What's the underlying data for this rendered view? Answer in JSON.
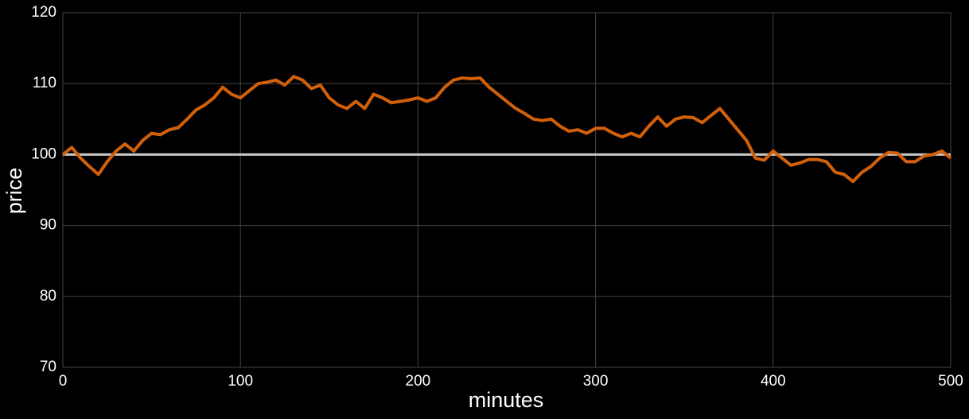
{
  "chart_data": {
    "type": "line",
    "xlabel": "minutes",
    "ylabel": "price",
    "x": [
      0,
      5,
      10,
      15,
      20,
      25,
      30,
      35,
      40,
      45,
      50,
      55,
      60,
      65,
      70,
      75,
      80,
      85,
      90,
      95,
      100,
      105,
      110,
      115,
      120,
      125,
      130,
      135,
      140,
      145,
      150,
      155,
      160,
      165,
      170,
      175,
      180,
      185,
      190,
      195,
      200,
      205,
      210,
      215,
      220,
      225,
      230,
      235,
      240,
      245,
      250,
      255,
      260,
      265,
      270,
      275,
      280,
      285,
      290,
      295,
      300,
      305,
      310,
      315,
      320,
      325,
      330,
      335,
      340,
      345,
      350,
      355,
      360,
      365,
      370,
      375,
      380,
      385,
      390,
      395,
      400,
      405,
      410,
      415,
      420,
      425,
      430,
      435,
      440,
      445,
      450,
      455,
      460,
      465,
      470,
      475,
      480,
      485,
      490,
      495,
      500
    ],
    "series": [
      {
        "name": "price",
        "color": "#d2600a",
        "values": [
          100,
          101,
          99.5,
          98.3,
          97.2,
          99,
          100.5,
          101.5,
          100.5,
          102,
          103,
          102.8,
          103.5,
          103.8,
          105,
          106.3,
          107,
          108,
          109.5,
          108.5,
          108,
          109,
          110,
          110.2,
          110.5,
          109.8,
          111,
          110.5,
          109.3,
          109.8,
          108,
          107,
          106.5,
          107.5,
          106.5,
          108.5,
          108,
          107.3,
          107.5,
          107.7,
          108,
          107.5,
          108,
          109.5,
          110.5,
          110.8,
          110.7,
          110.8,
          109.5,
          108.5,
          107.5,
          106.5,
          105.8,
          105,
          104.8,
          105,
          104,
          103.3,
          103.5,
          103,
          103.7,
          103.7,
          103,
          102.5,
          103,
          102.5,
          104,
          105.3,
          104,
          105,
          105.3,
          105.2,
          104.5,
          105.5,
          106.5,
          105,
          103.5,
          102,
          99.5,
          99.2,
          100.5,
          99.5,
          98.5,
          98.8,
          99.3,
          99.3,
          99,
          97.5,
          97.2,
          96.2,
          97.5,
          98.3,
          99.5,
          100.3,
          100.2,
          99,
          99,
          99.8,
          100,
          100.5,
          99.5
        ]
      }
    ],
    "hline": {
      "value": 100,
      "color": "#c8c8c8"
    },
    "xlim": [
      0,
      500
    ],
    "xticks": [
      0,
      100,
      200,
      300,
      400,
      500
    ],
    "ylim": [
      70,
      120
    ],
    "yticks": [
      70,
      80,
      90,
      100,
      110,
      120
    ],
    "grid": true
  }
}
